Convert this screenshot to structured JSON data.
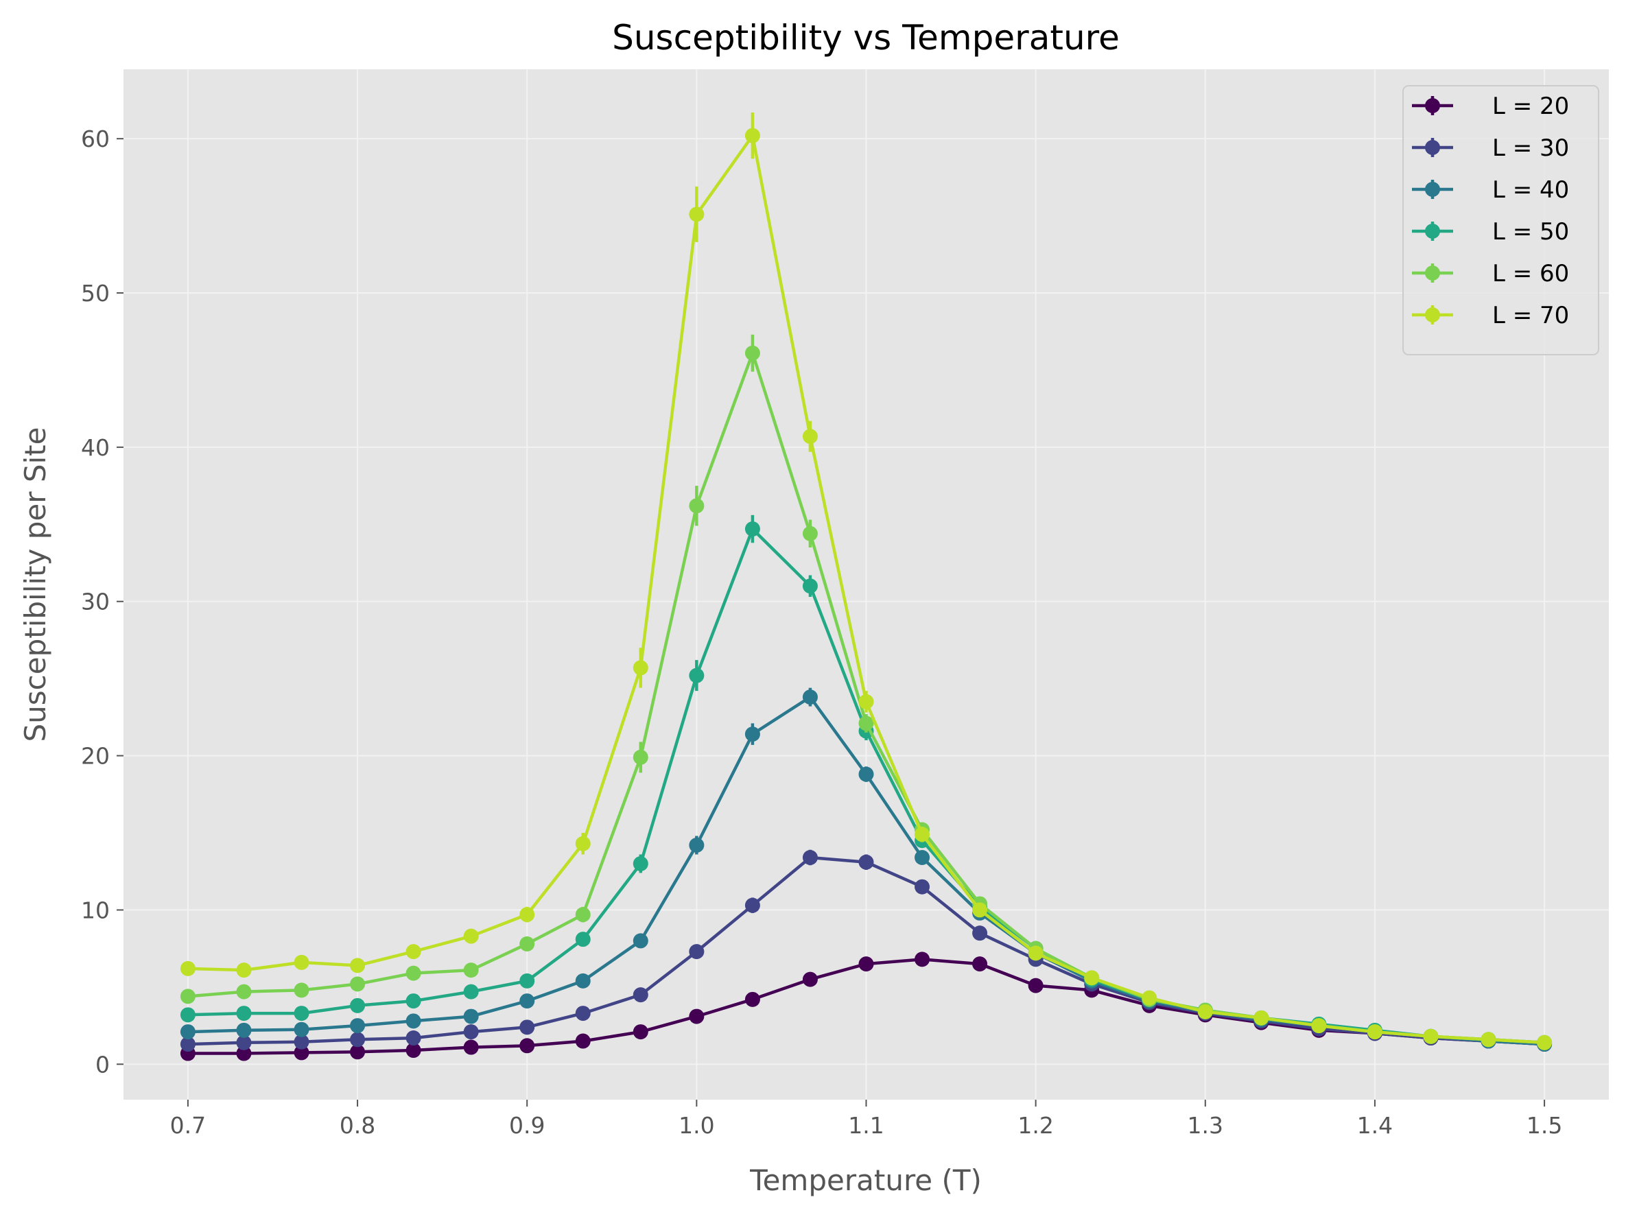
{
  "chart_data": {
    "type": "line",
    "title": "Susceptibility vs Temperature",
    "xlabel": "Temperature (T)",
    "ylabel": "Susceptibility per Site",
    "xlim": [
      0.662,
      1.538
    ],
    "ylim": [
      -2.3,
      64.5
    ],
    "xticks": [
      0.7,
      0.8,
      0.9,
      1.0,
      1.1,
      1.2,
      1.3,
      1.4,
      1.5
    ],
    "xtick_labels": [
      "0.7",
      "0.8",
      "0.9",
      "1.0",
      "1.1",
      "1.2",
      "1.3",
      "1.4",
      "1.5"
    ],
    "yticks": [
      0,
      10,
      20,
      30,
      40,
      50,
      60
    ],
    "ytick_labels": [
      "0",
      "10",
      "20",
      "30",
      "40",
      "50",
      "60"
    ],
    "grid": true,
    "legend_position": "top-right",
    "x": [
      0.7,
      0.733,
      0.767,
      0.8,
      0.833,
      0.867,
      0.9,
      0.933,
      0.967,
      1.0,
      1.033,
      1.067,
      1.1,
      1.133,
      1.167,
      1.2,
      1.233,
      1.267,
      1.3,
      1.333,
      1.367,
      1.4,
      1.433,
      1.467,
      1.5
    ],
    "series": [
      {
        "name": "L = 20",
        "color": "#440154",
        "values": [
          0.7,
          0.7,
          0.75,
          0.8,
          0.9,
          1.1,
          1.2,
          1.5,
          2.1,
          3.1,
          4.2,
          5.5,
          6.5,
          6.8,
          6.5,
          5.1,
          4.8,
          3.8,
          3.2,
          2.7,
          2.2,
          2.0,
          1.7,
          1.5,
          1.3
        ],
        "errors": [
          0.1,
          0.1,
          0.1,
          0.1,
          0.1,
          0.1,
          0.1,
          0.15,
          0.2,
          0.2,
          0.3,
          0.3,
          0.3,
          0.3,
          0.3,
          0.2,
          0.2,
          0.2,
          0.15,
          0.1,
          0.1,
          0.1,
          0.1,
          0.1,
          0.1
        ]
      },
      {
        "name": "L = 30",
        "color": "#414487",
        "values": [
          1.3,
          1.4,
          1.45,
          1.6,
          1.7,
          2.1,
          2.4,
          3.3,
          4.5,
          7.3,
          10.3,
          13.4,
          13.1,
          11.5,
          8.5,
          6.8,
          5.2,
          4.0,
          3.3,
          2.8,
          2.3,
          2.0,
          1.7,
          1.5,
          1.3
        ],
        "errors": [
          0.1,
          0.1,
          0.1,
          0.1,
          0.1,
          0.15,
          0.15,
          0.2,
          0.3,
          0.4,
          0.5,
          0.5,
          0.5,
          0.4,
          0.3,
          0.3,
          0.2,
          0.2,
          0.15,
          0.1,
          0.1,
          0.1,
          0.1,
          0.1,
          0.1
        ]
      },
      {
        "name": "L = 40",
        "color": "#2a788e",
        "values": [
          2.1,
          2.2,
          2.25,
          2.5,
          2.8,
          3.1,
          4.1,
          5.4,
          8.0,
          14.2,
          21.4,
          23.8,
          18.8,
          13.4,
          9.8,
          7.2,
          5.4,
          4.1,
          3.4,
          2.9,
          2.5,
          2.1,
          1.8,
          1.5,
          1.3
        ],
        "errors": [
          0.1,
          0.1,
          0.1,
          0.1,
          0.15,
          0.15,
          0.2,
          0.3,
          0.4,
          0.6,
          0.7,
          0.6,
          0.5,
          0.4,
          0.3,
          0.3,
          0.2,
          0.2,
          0.15,
          0.1,
          0.1,
          0.1,
          0.1,
          0.1,
          0.1
        ]
      },
      {
        "name": "L = 50",
        "color": "#22a884",
        "values": [
          3.2,
          3.3,
          3.3,
          3.8,
          4.1,
          4.7,
          5.4,
          8.1,
          13.0,
          25.2,
          34.7,
          31.0,
          21.6,
          14.5,
          10.2,
          7.5,
          5.5,
          4.2,
          3.5,
          3.0,
          2.6,
          2.2,
          1.8,
          1.6,
          1.4
        ],
        "errors": [
          0.15,
          0.15,
          0.15,
          0.2,
          0.2,
          0.2,
          0.3,
          0.4,
          0.6,
          1.0,
          0.9,
          0.7,
          0.6,
          0.4,
          0.3,
          0.3,
          0.2,
          0.2,
          0.15,
          0.1,
          0.1,
          0.1,
          0.1,
          0.1,
          0.1
        ]
      },
      {
        "name": "L = 60",
        "color": "#7ad151",
        "values": [
          4.4,
          4.7,
          4.8,
          5.2,
          5.9,
          6.1,
          7.8,
          9.7,
          19.9,
          36.2,
          46.1,
          34.4,
          22.1,
          15.2,
          10.4,
          7.5,
          5.6,
          4.2,
          3.5,
          3.0,
          2.5,
          2.1,
          1.8,
          1.6,
          1.4
        ],
        "errors": [
          0.2,
          0.2,
          0.2,
          0.2,
          0.25,
          0.3,
          0.3,
          0.5,
          1.0,
          1.3,
          1.2,
          0.9,
          0.6,
          0.4,
          0.3,
          0.3,
          0.2,
          0.2,
          0.15,
          0.1,
          0.1,
          0.1,
          0.1,
          0.1,
          0.1
        ]
      },
      {
        "name": "L = 70",
        "color": "#bddf26",
        "values": [
          6.2,
          6.1,
          6.6,
          6.4,
          7.3,
          8.3,
          9.7,
          14.3,
          25.7,
          55.1,
          60.2,
          40.7,
          23.5,
          14.9,
          10.0,
          7.2,
          5.6,
          4.3,
          3.4,
          3.0,
          2.5,
          2.1,
          1.8,
          1.6,
          1.4
        ],
        "errors": [
          0.3,
          0.3,
          0.3,
          0.3,
          0.35,
          0.4,
          0.5,
          0.7,
          1.3,
          1.8,
          1.5,
          1.0,
          0.7,
          0.5,
          0.3,
          0.3,
          0.2,
          0.2,
          0.15,
          0.1,
          0.1,
          0.1,
          0.1,
          0.1,
          0.1
        ]
      }
    ]
  },
  "colors": {
    "plot_background": "#e5e5e5",
    "grid": "#f2f2f2",
    "legend_background": "#e5e5e5",
    "legend_border": "#cccccc"
  }
}
